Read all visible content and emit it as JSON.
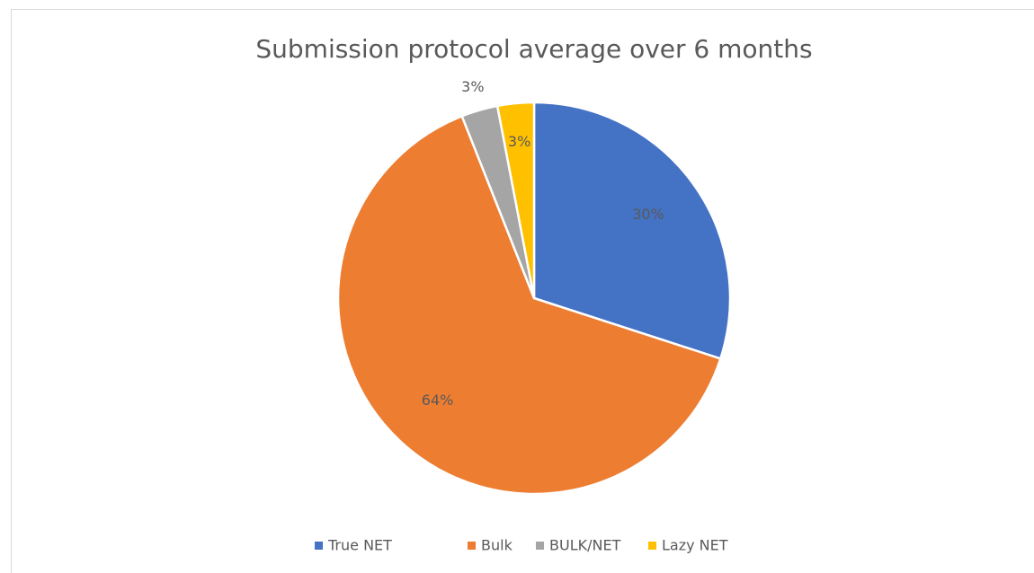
{
  "chart_data": {
    "type": "pie",
    "title": "Submission protocol average over 6 months",
    "categories": [
      "True NET",
      "Bulk",
      "BULK/NET",
      "Lazy NET"
    ],
    "values": [
      30,
      64,
      3,
      3
    ],
    "value_labels": [
      "30%",
      "64%",
      "3%",
      "3%"
    ],
    "colors": [
      "#4472c4",
      "#ed7d31",
      "#a5a5a5",
      "#ffc000"
    ],
    "legend": "bottom"
  }
}
